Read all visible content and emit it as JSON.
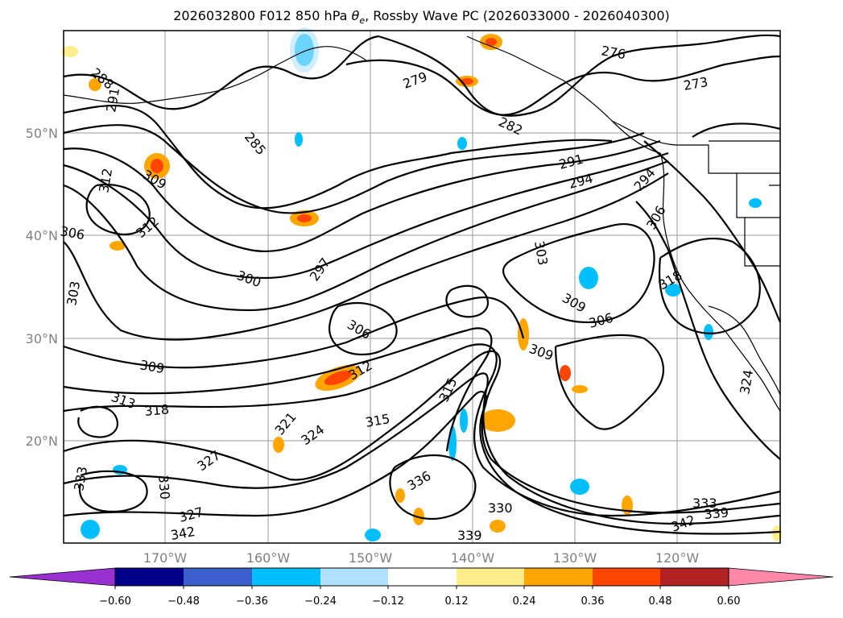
{
  "title": {
    "prefix": "2026032800 F012 850 hPa ",
    "symbol": "θ",
    "symbol_sub": "e",
    "suffix": ", Rossby Wave PC (2026033000 - 2026040300)"
  },
  "lon_ticks": [
    "170°W",
    "160°W",
    "150°W",
    "140°W",
    "130°W",
    "120°W"
  ],
  "lat_ticks": [
    "50°N",
    "40°N",
    "30°N",
    "20°N"
  ],
  "contour_labels": [
    "288",
    "291",
    "285",
    "279",
    "276",
    "273",
    "282",
    "291",
    "294",
    "294",
    "312",
    "309",
    "312",
    "306",
    "303",
    "300",
    "297",
    "303",
    "306",
    "309",
    "306",
    "318",
    "309",
    "312",
    "315",
    "313",
    "318",
    "321",
    "324",
    "315",
    "309",
    "327",
    "330",
    "333",
    "327",
    "342",
    "336",
    "330",
    "339",
    "333",
    "339",
    "342",
    "324",
    "306"
  ],
  "colorbar": {
    "ticks": [
      "−0.60",
      "−0.48",
      "−0.36",
      "−0.24",
      "−0.12",
      "0.12",
      "0.24",
      "0.36",
      "0.48",
      "0.60"
    ],
    "colors": [
      "#9b30d0",
      "#00008b",
      "#3a5fcd",
      "#00bfff",
      "#b0e2ff",
      "#ffffff",
      "#ffec8b",
      "#ffa500",
      "#ff4500",
      "#b22222",
      "#ff88aa"
    ]
  }
}
